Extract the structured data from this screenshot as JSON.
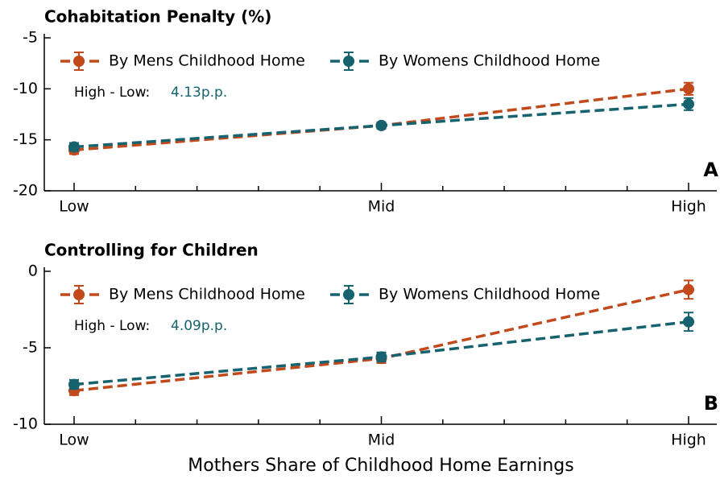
{
  "chart_data": [
    {
      "type": "line",
      "title": "Cohabitation Penalty (%)",
      "panel_label": "A",
      "categories": [
        "Low",
        "Mid",
        "High"
      ],
      "series": [
        {
          "name": "By Mens Childhood Home",
          "color": "#c2491b",
          "values": [
            -16.0,
            -13.6,
            -10.0
          ],
          "errors": [
            0.4,
            0.3,
            0.6
          ]
        },
        {
          "name": "By Womens Childhood Home",
          "color": "#17626f",
          "values": [
            -15.7,
            -13.6,
            -11.5
          ],
          "errors": [
            0.4,
            0.3,
            0.6
          ]
        }
      ],
      "annotation": "High - Low:",
      "annotation_value": "4.13p.p.",
      "ylim": [
        -20,
        -5
      ],
      "yticks": [
        -20,
        -15,
        -10,
        -5
      ]
    },
    {
      "type": "line",
      "title": "Controlling for Children",
      "panel_label": "B",
      "categories": [
        "Low",
        "Mid",
        "High"
      ],
      "series": [
        {
          "name": "By Mens Childhood Home",
          "color": "#c2491b",
          "values": [
            -7.8,
            -5.7,
            -1.2
          ],
          "errors": [
            0.3,
            0.3,
            0.6
          ]
        },
        {
          "name": "By Womens Childhood Home",
          "color": "#17626f",
          "values": [
            -7.4,
            -5.6,
            -3.3
          ],
          "errors": [
            0.3,
            0.3,
            0.6
          ]
        }
      ],
      "annotation": "High - Low:",
      "annotation_value": "4.09p.p.",
      "xlabel": "Mothers Share of Childhood Home Earnings",
      "ylim": [
        -10,
        0
      ],
      "yticks": [
        -10,
        -5,
        0
      ]
    }
  ]
}
